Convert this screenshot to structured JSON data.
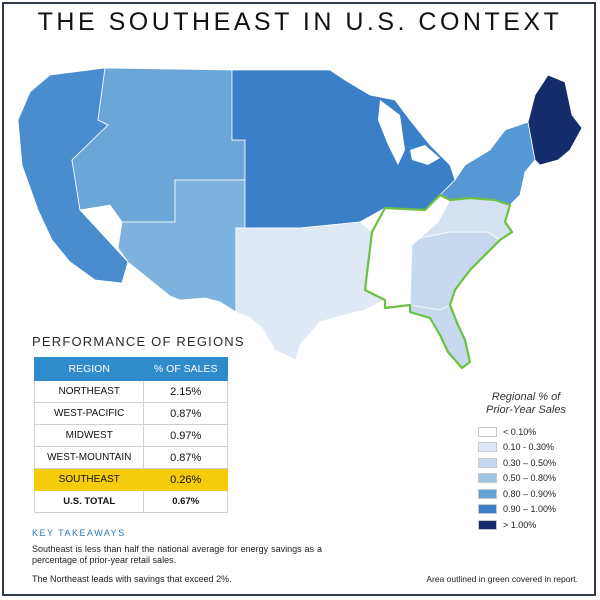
{
  "title": "THE SOUTHEAST IN U.S. CONTEXT",
  "performance": {
    "title": "PERFORMANCE OF REGIONS",
    "headers": [
      "REGION",
      "% OF SALES"
    ],
    "rows": [
      {
        "region": "NORTHEAST",
        "value": "2.15%"
      },
      {
        "region": "WEST-PACIFIC",
        "value": "0.87%"
      },
      {
        "region": "MIDWEST",
        "value": "0.97%"
      },
      {
        "region": "WEST-MOUNTAIN",
        "value": "0.87%"
      },
      {
        "region": "SOUTHEAST",
        "value": "0.26%"
      },
      {
        "region": "U.S. TOTAL",
        "value": "0.67%"
      }
    ]
  },
  "legend": {
    "title_line1": "Regional % of",
    "title_line2": "Prior-Year Sales",
    "items": [
      {
        "label": "< 0.10%",
        "color": "#ffffff"
      },
      {
        "label": "0.10 - 0.30%",
        "color": "#dfe9f6"
      },
      {
        "label": "0.30 – 0.50%",
        "color": "#c6d9ee"
      },
      {
        "label": "0.50 – 0.80%",
        "color": "#9ec2e2"
      },
      {
        "label": "0.80 – 0.90%",
        "color": "#64a3d6"
      },
      {
        "label": "0.90 – 1.00%",
        "color": "#3d7fc6"
      },
      {
        "label": "> 1.00%",
        "color": "#142c6b"
      }
    ]
  },
  "key_takeaways": {
    "title": "KEY TAKEAWAYS",
    "line1": "Southeast is less than half the national average for energy savings as a percentage of prior-year retail sales.",
    "line2": "The Northeast leads with savings that exceed 2%."
  },
  "footnote": "Area outlined in green covered in report.",
  "map_colors": {
    "pacific": "#4a8dcf",
    "mountain": "#6aa6d8",
    "southwest": "#7fb3df",
    "midwest": "#3b7fc8",
    "northeast": "#142c6b",
    "mid_atlantic": "#5598d4",
    "south_central": "#dfe9f6",
    "southeast_light": "#c6d9ee",
    "southeast_white": "#ffffff",
    "virginia": "#d4e2f2",
    "outline": "#6ac142"
  }
}
